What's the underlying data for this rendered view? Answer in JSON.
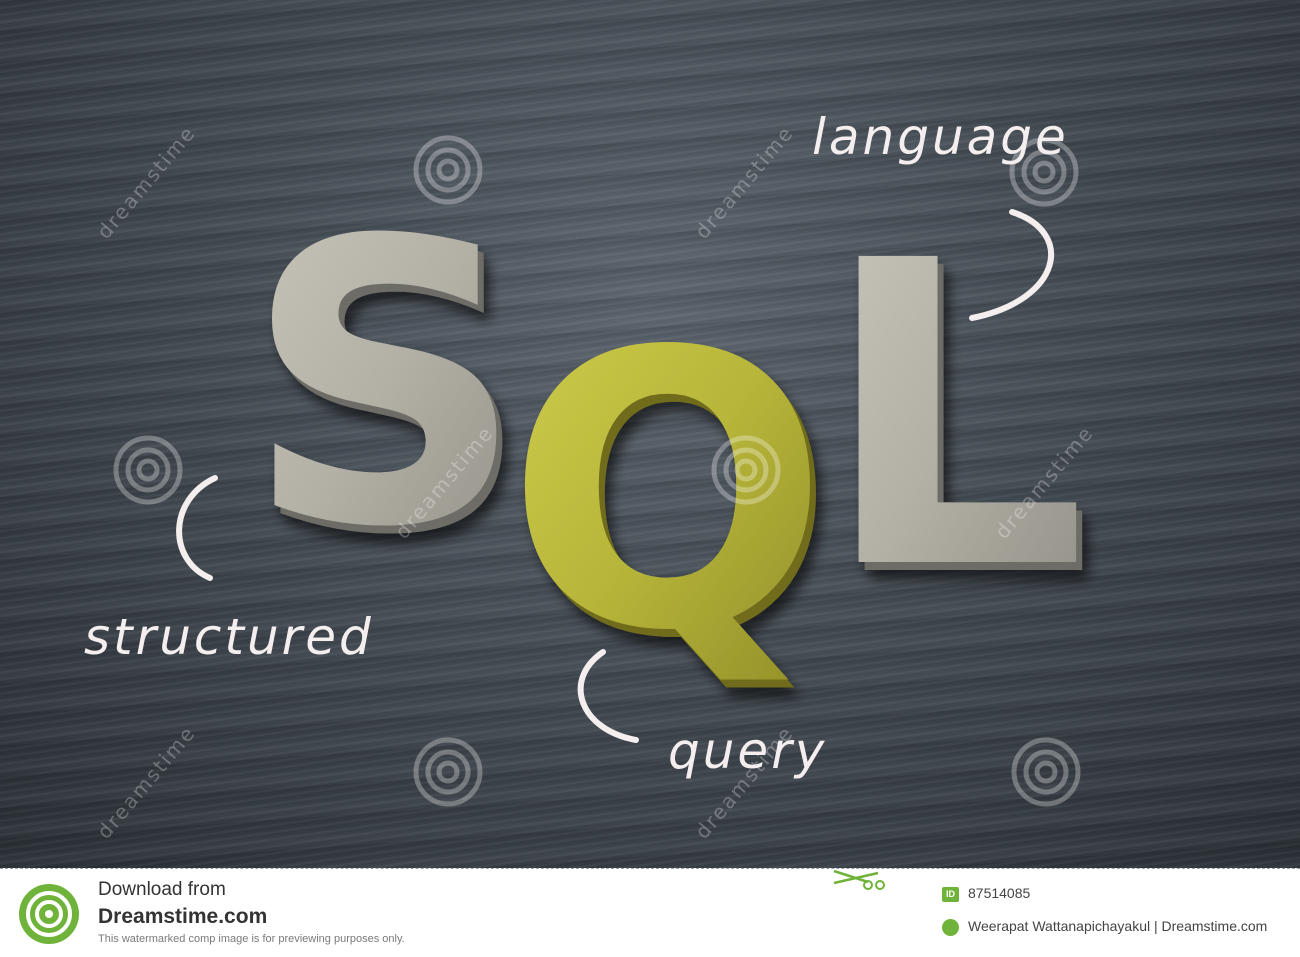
{
  "photo": {
    "letters": [
      "S",
      "Q",
      "L"
    ],
    "words": {
      "language": "language",
      "structured": "structured",
      "query": "query"
    },
    "watermark": "dreamstime",
    "colors": {
      "wood": "#454d55",
      "letter_gray": "#b6b3a8",
      "letter_gold": "#b8b63a",
      "handwriting": "#f4eeef"
    }
  },
  "footer": {
    "download_label": "Download from",
    "brand": "Dreamstime.com",
    "note": "This watermarked comp image is for previewing purposes only.",
    "id_label": "ID",
    "id_value": "87514085",
    "credit": "Weerapat Wattanapichayakul | Dreamstime.com",
    "accent": "#70b33a"
  }
}
